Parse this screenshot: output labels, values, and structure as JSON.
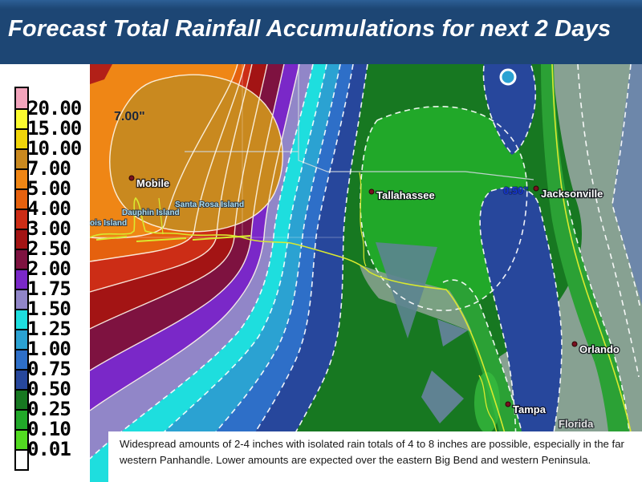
{
  "header": {
    "title": "Forecast Total Rainfall Accumulations for next 2 Days",
    "bg_color": "#1d4674",
    "text_color": "#ffffff"
  },
  "legend": {
    "values": [
      "20.00",
      "15.00",
      "10.00",
      "7.00",
      "5.00",
      "4.00",
      "3.00",
      "2.50",
      "2.00",
      "1.75",
      "1.50",
      "1.25",
      "1.00",
      "0.75",
      "0.50",
      "0.25",
      "0.10",
      "0.01"
    ],
    "colors": [
      "#F2A4BC",
      "#FBFB2F",
      "#F0D50A",
      "#C9891F",
      "#EF8615",
      "#E5610E",
      "#CC2D16",
      "#A31414",
      "#7E1240",
      "#7A28C8",
      "#9186C8",
      "#1EDEDE",
      "#2BA2D2",
      "#2E6FC8",
      "#27479C",
      "#177821",
      "#21A829",
      "#52DB21",
      "#FFFFFF"
    ]
  },
  "map": {
    "peak_label": "7.00\"",
    "low_label": "0.50\"",
    "cities": [
      {
        "name": "Mobile"
      },
      {
        "name": "Tallahassee"
      },
      {
        "name": "Jacksonville"
      },
      {
        "name": "Orlando"
      },
      {
        "name": "Tampa"
      }
    ],
    "islands": [
      {
        "name": "ois Island"
      },
      {
        "name": "Dauphin Island"
      },
      {
        "name": "Santa Rosa Island"
      }
    ],
    "state_label": "Florida",
    "colors": {
      "coast_green": "#2BA135",
      "sage": "#87A192",
      "slate": "#6D87AA",
      "bay": "#5C8490",
      "coastline_yellow": "#D9E92F",
      "border_gray": "#cfd8df"
    }
  },
  "caption": {
    "text": "Widespread amounts of 2-4 inches with isolated rain totals of 4 to 8 inches are possible, especially in the far western Panhandle. Lower amounts are expected over the eastern Big Bend and western Peninsula."
  },
  "chart_data": {
    "type": "heatmap",
    "title": "Forecast Total Rainfall Accumulations for next 2 Days",
    "units": "inches",
    "contour_levels": [
      0.01,
      0.1,
      0.25,
      0.5,
      0.75,
      1.0,
      1.25,
      1.5,
      1.75,
      2.0,
      2.5,
      3.0,
      4.0,
      5.0,
      7.0,
      10.0,
      15.0,
      20.0
    ],
    "notable_values": [
      {
        "location": "near Mobile / far western Panhandle",
        "value": 7.0
      },
      {
        "location": "near Jacksonville",
        "value": 0.5
      }
    ],
    "legend_position": "left"
  }
}
